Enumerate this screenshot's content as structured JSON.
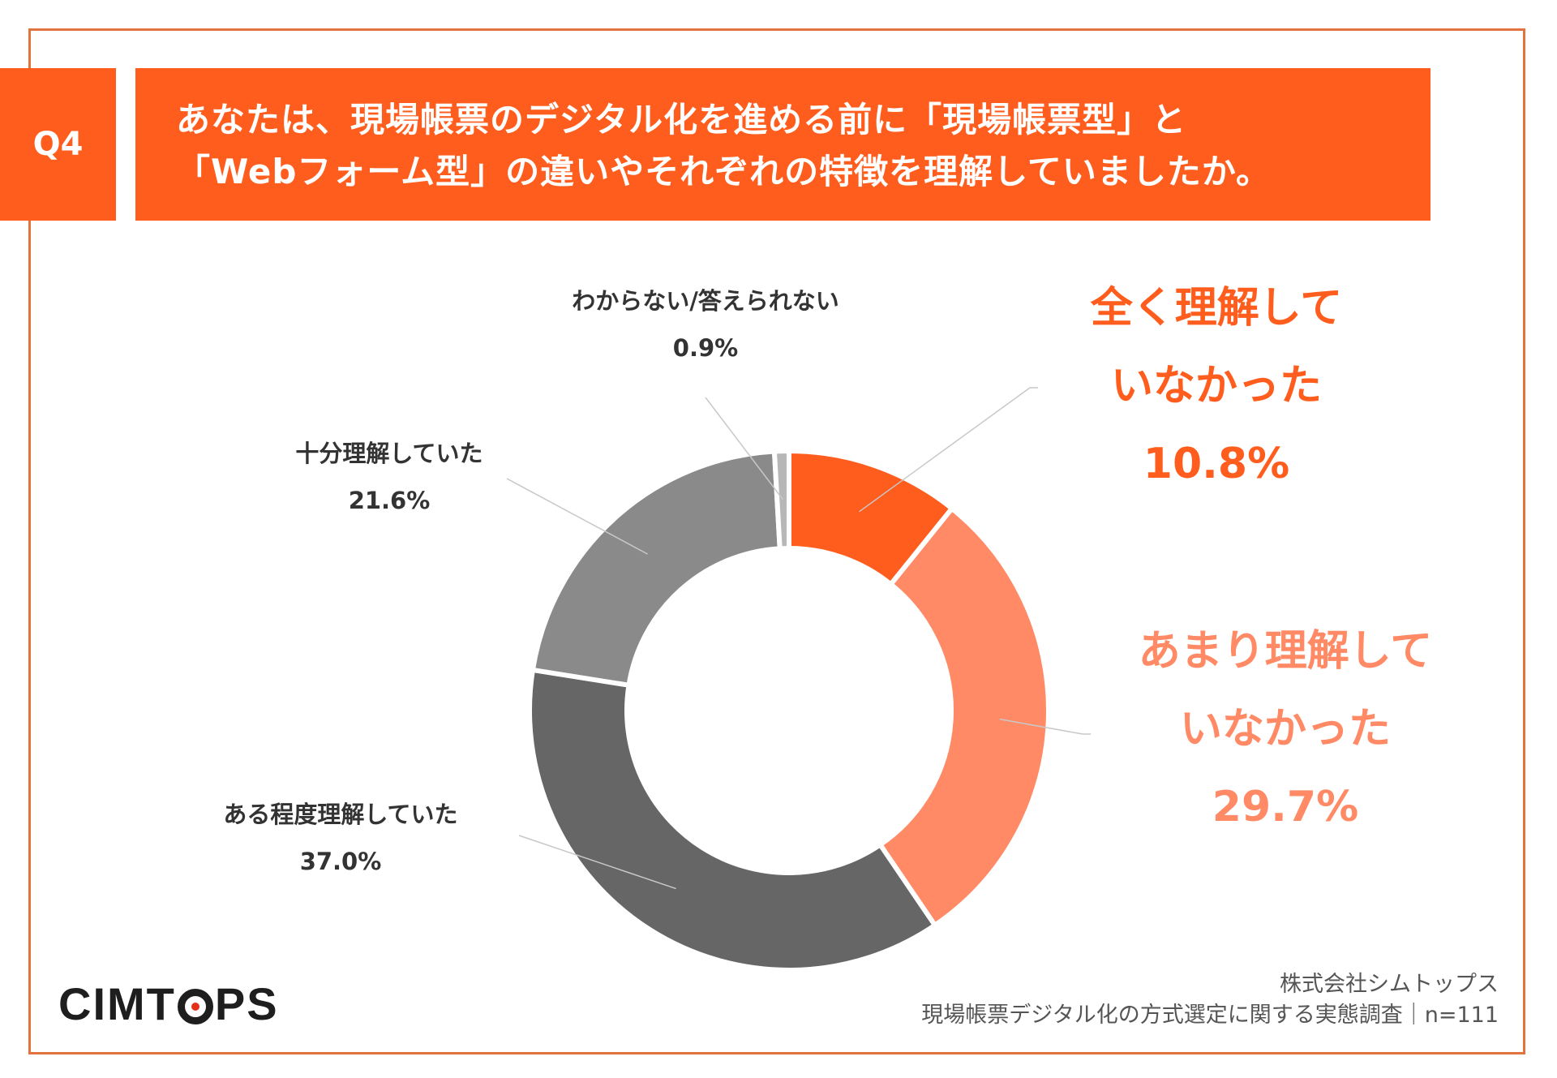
{
  "question": {
    "badge": "Q4",
    "line1": "あなたは、現場帳票のデジタル化を進める前に「現場帳票型」と",
    "line2": "「Webフォーム型」の違いやそれぞれの特徴を理解していましたか。"
  },
  "chart_data": {
    "type": "pie",
    "donut": true,
    "categories": [
      "全く理解していなかった",
      "あまり理解していなかった",
      "ある程度理解していた",
      "十分理解していた",
      "わからない/答えられない"
    ],
    "values": [
      10.8,
      29.7,
      37.0,
      21.6,
      0.9
    ],
    "colors": [
      "#ff5d1e",
      "#ff8a65",
      "#666666",
      "#8a8a8a",
      "#b7b7b7"
    ],
    "labels": [
      {
        "lines": [
          "全く理解して",
          "いなかった"
        ],
        "value_text": "10.8%",
        "color": "#ff5d1e"
      },
      {
        "lines": [
          "あまり理解して",
          "いなかった"
        ],
        "value_text": "29.7%",
        "color": "#ff8a65"
      },
      {
        "lines": [
          "ある程度理解していた"
        ],
        "value_text": "37.0%"
      },
      {
        "lines": [
          "十分理解していた"
        ],
        "value_text": "21.6%"
      },
      {
        "lines": [
          "わからない/答えられない"
        ],
        "value_text": "0.9%"
      }
    ]
  },
  "logo": "CIMTOPS",
  "source": {
    "company": "株式会社シムトップス",
    "survey": "現場帳票デジタル化の方式選定に関する実態調査｜n=111"
  }
}
